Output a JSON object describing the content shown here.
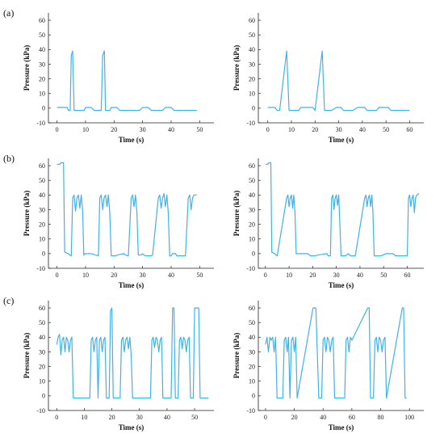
{
  "figure": {
    "panel_labels": [
      "(a)",
      "(b)",
      "(c)"
    ]
  },
  "chart_data": [
    {
      "type": "line",
      "panel": "a-left",
      "xlabel": "Time (s)",
      "ylabel": "Pressure (kPa)",
      "xlim": [
        -3,
        55
      ],
      "ylim": [
        -10,
        65
      ],
      "xticks": [
        0,
        10,
        20,
        30,
        40,
        50
      ],
      "yticks": [
        -10,
        0,
        10,
        20,
        30,
        40,
        50,
        60
      ],
      "grid": false,
      "color": "#3fb2ea",
      "series": [
        {
          "x": [
            0,
            3.6,
            4,
            4.6,
            5,
            5.5,
            6,
            6.2,
            6.6,
            9.5,
            10,
            12,
            13,
            15,
            15.5,
            16,
            16.6,
            17,
            17.4,
            17.8,
            18.5,
            19,
            21,
            22,
            25,
            29,
            30,
            32,
            33,
            37,
            38,
            40,
            41,
            44,
            45,
            49
          ],
          "y": [
            0.5,
            0.5,
            -1.5,
            -1.5,
            36,
            39,
            -1.5,
            -1.5,
            -1.5,
            -1.5,
            0.5,
            0.5,
            -1.5,
            -1.5,
            -1.5,
            36,
            39,
            -1.5,
            -1.5,
            -1.5,
            -1.5,
            0.5,
            0.5,
            -1.5,
            -1.5,
            -1.5,
            0.5,
            0.5,
            -1.5,
            -1.5,
            0.5,
            0.5,
            -1.5,
            -1.5,
            -1.5,
            -1.5
          ]
        }
      ]
    },
    {
      "type": "line",
      "panel": "a-right",
      "xlabel": "Time (s)",
      "ylabel": "Pressure (kPa)",
      "xlim": [
        -4,
        66
      ],
      "ylim": [
        -10,
        65
      ],
      "xticks": [
        0,
        10,
        20,
        30,
        40,
        50,
        60
      ],
      "yticks": [
        -10,
        0,
        10,
        20,
        30,
        40,
        50,
        60
      ],
      "grid": false,
      "color": "#3fb2ea",
      "series": [
        {
          "x": [
            0,
            3,
            4,
            5,
            8,
            9,
            13,
            14,
            19,
            20,
            23,
            24,
            27,
            29,
            31,
            32,
            36,
            38,
            41,
            42,
            46,
            47,
            51,
            52,
            55,
            60
          ],
          "y": [
            0.5,
            0.5,
            -1.5,
            -1.5,
            39,
            -1.5,
            -1.5,
            0.5,
            0.5,
            -1.5,
            39,
            -1.5,
            -1.5,
            0.5,
            0.5,
            -1.5,
            -1.5,
            0.5,
            0.5,
            -1.5,
            -1.5,
            0.5,
            0.5,
            -1.5,
            -1.5,
            -1.5
          ]
        }
      ]
    },
    {
      "type": "line",
      "panel": "b-left",
      "xlabel": "Time (s)",
      "ylabel": "Pressure (kPa)",
      "xlim": [
        -3,
        55
      ],
      "ylim": [
        -10,
        65
      ],
      "xticks": [
        0,
        10,
        20,
        30,
        40,
        50
      ],
      "yticks": [
        -10,
        0,
        10,
        20,
        30,
        40,
        50,
        60
      ],
      "grid": false,
      "color": "#3fb2ea",
      "series": [
        {
          "x": [
            0,
            1,
            1.5,
            2,
            2.3,
            2.7,
            4,
            4.5,
            5,
            5.5,
            6,
            6.5,
            7,
            7.5,
            8,
            8.5,
            9,
            9.4,
            9.8,
            10.5,
            11,
            12,
            14.5,
            15,
            15.5,
            16,
            16.5,
            17,
            17.5,
            18,
            18.5,
            19,
            19.5,
            20,
            20.5,
            21,
            23.5,
            24,
            25,
            26,
            26.5,
            27,
            27.5,
            28,
            28.5,
            29,
            29.5,
            30,
            30.5,
            31,
            32,
            32.5,
            33,
            33.5,
            35.5,
            36,
            36.5,
            37,
            37.5,
            38,
            38.5,
            39,
            39.5,
            40,
            40.5,
            41,
            41.5,
            42,
            44,
            44.5,
            45,
            46,
            46.5,
            47,
            47.5,
            48,
            48.5,
            49
          ],
          "y": [
            61,
            61,
            62,
            62,
            62,
            1,
            0,
            -1,
            -1.5,
            38,
            40,
            29,
            38,
            40,
            31,
            40,
            29,
            -1,
            0,
            0,
            0,
            0,
            -1.5,
            38,
            40,
            30,
            38,
            40,
            32,
            40,
            28,
            -1.5,
            -1.5,
            -1.5,
            -1.5,
            -1,
            0,
            -1,
            -1.5,
            38,
            40,
            32,
            40,
            28,
            -1,
            -1,
            -1,
            0,
            -1,
            -1.5,
            -1.5,
            -1.5,
            -1.5,
            -1,
            38,
            40,
            31,
            38,
            41,
            32,
            40,
            28,
            -1.5,
            -1.5,
            0,
            0,
            0,
            -1.5,
            -1.5,
            -1.5,
            -1.5,
            38,
            40,
            30,
            38,
            40,
            40,
            40
          ]
        }
      ]
    },
    {
      "type": "line",
      "panel": "b-right",
      "xlabel": "Time (s)",
      "ylabel": "Pressure (kPa)",
      "xlim": [
        -3,
        67
      ],
      "ylim": [
        -10,
        65
      ],
      "xticks": [
        0,
        10,
        20,
        30,
        40,
        50,
        60
      ],
      "yticks": [
        -10,
        0,
        10,
        20,
        30,
        40,
        50,
        60
      ],
      "grid": false,
      "color": "#3fb2ea",
      "series": [
        {
          "x": [
            0,
            1,
            1.5,
            2,
            2.3,
            2.7,
            4,
            4.5,
            5,
            9,
            9.5,
            10,
            10.5,
            11,
            11.5,
            12,
            12.5,
            13,
            13.5,
            14,
            16,
            18,
            19,
            21,
            22,
            26,
            26.5,
            27,
            27.5,
            28,
            28.5,
            29,
            29.5,
            30,
            30.5,
            31,
            32,
            34,
            35,
            36,
            37,
            38,
            42,
            42.5,
            43,
            43.5,
            44,
            44.5,
            45,
            45.5,
            46,
            46.5,
            47,
            49,
            51,
            52,
            54,
            55,
            59,
            59.5,
            60,
            60.5,
            61,
            61.5,
            62,
            62.5,
            63,
            63.5,
            64,
            65
          ],
          "y": [
            61,
            61,
            62,
            62,
            62,
            1,
            0,
            -1,
            -1.5,
            38,
            40,
            32,
            38,
            40,
            31,
            40,
            28,
            0,
            0,
            0,
            0,
            0,
            -1.5,
            -1.5,
            -1,
            0,
            -1.5,
            -1.5,
            -1.5,
            38,
            40,
            30,
            38,
            40,
            33,
            40,
            -1.5,
            -1.5,
            0,
            -1.5,
            -1.5,
            -1.5,
            38,
            40,
            32,
            38,
            40,
            32,
            40,
            28,
            -1.5,
            -1.5,
            -1.5,
            -1.5,
            0,
            0,
            0,
            -1.5,
            -1.5,
            -1.5,
            -1.5,
            38,
            40,
            32,
            38,
            40,
            28,
            38,
            40,
            41
          ]
        }
      ]
    },
    {
      "type": "line",
      "panel": "c-left",
      "xlabel": "Time (s)",
      "ylabel": "Pressure (kPa)",
      "xlim": [
        -3,
        57
      ],
      "ylim": [
        -10,
        65
      ],
      "xticks": [
        0,
        10,
        20,
        30,
        40,
        50
      ],
      "yticks": [
        -10,
        0,
        10,
        20,
        30,
        40,
        50,
        60
      ],
      "grid": false,
      "color": "#3fb2ea",
      "series": [
        {
          "x": [
            0,
            0.5,
            1,
            1.5,
            2,
            2.5,
            3,
            3.5,
            4,
            4.5,
            5,
            5.5,
            6,
            9,
            12,
            12.5,
            13,
            13.5,
            14,
            14.5,
            15,
            15.5,
            16,
            16.5,
            17,
            17.5,
            18,
            19,
            19.5,
            20,
            20.5,
            21,
            21.5,
            23,
            23.5,
            24,
            24.5,
            25,
            25.5,
            26,
            26.5,
            27,
            27.5,
            28,
            29,
            34,
            34.5,
            35,
            35.5,
            36,
            36.5,
            37,
            37.5,
            38,
            38.5,
            39,
            39.5,
            40,
            40.5,
            41,
            41.5,
            42,
            42.5,
            43,
            44,
            44.5,
            45,
            45.5,
            46,
            46.5,
            47,
            47.5,
            48,
            48.5,
            49,
            49.5,
            50,
            50.5,
            51,
            51.5,
            52,
            53,
            53.5,
            55
          ],
          "y": [
            35,
            40,
            42,
            28,
            38,
            40,
            30,
            40,
            38,
            30,
            38,
            40,
            -1.5,
            -1.5,
            -1.5,
            38,
            40,
            30,
            38,
            40,
            -1.5,
            38,
            40,
            30,
            38,
            40,
            -1.5,
            -1.5,
            58,
            60,
            -1.5,
            -1.5,
            -1.5,
            -1.5,
            38,
            40,
            30,
            38,
            40,
            32,
            40,
            28,
            -1.5,
            -1.5,
            -1.5,
            -1.5,
            38,
            40,
            33,
            40,
            38,
            30,
            38,
            40,
            -1.5,
            -1.5,
            -1.5,
            -1.5,
            -1.5,
            -1.5,
            -1.5,
            60,
            60,
            -1.5,
            -1.5,
            38,
            40,
            32,
            40,
            38,
            30,
            38,
            40,
            -1.5,
            -1.5,
            -1.5,
            60,
            60,
            60,
            60,
            -1.5,
            -1.5,
            -1.5,
            -1.5
          ]
        }
      ]
    },
    {
      "type": "line",
      "panel": "c-right",
      "xlabel": "Time (s)",
      "ylabel": "Pressure (kPa)",
      "xlim": [
        -5,
        110
      ],
      "ylim": [
        -10,
        65
      ],
      "xticks": [
        0,
        20,
        40,
        60,
        80,
        100
      ],
      "yticks": [
        -10,
        0,
        10,
        20,
        30,
        40,
        50,
        60
      ],
      "grid": false,
      "color": "#3fb2ea",
      "series": [
        {
          "x": [
            0,
            1,
            2,
            3,
            4,
            5,
            6,
            7,
            8,
            10,
            12,
            13,
            14,
            15,
            16,
            17,
            18,
            19,
            20,
            21,
            22,
            33,
            35,
            37,
            38,
            39,
            40,
            41,
            42,
            43,
            44,
            45,
            46,
            47,
            48,
            49,
            54,
            55,
            56,
            57,
            58,
            59,
            60,
            71,
            72,
            73,
            74,
            75,
            76,
            77,
            78,
            79,
            80,
            81,
            82,
            83,
            84,
            95,
            96,
            97,
            98
          ],
          "y": [
            35,
            40,
            30,
            40,
            38,
            40,
            30,
            40,
            -1.5,
            -1.5,
            -1.5,
            38,
            40,
            30,
            40,
            -1.5,
            38,
            40,
            30,
            40,
            -1.5,
            60,
            60,
            -1.5,
            -1.5,
            -1.5,
            38,
            40,
            30,
            40,
            38,
            30,
            38,
            40,
            -1.5,
            -1.5,
            -1.5,
            -1.5,
            38,
            40,
            30,
            40,
            38,
            60,
            60,
            -1.5,
            -1.5,
            -1.5,
            38,
            40,
            30,
            40,
            38,
            30,
            38,
            40,
            -1.5,
            60,
            60,
            -1.5,
            -1.5
          ]
        }
      ]
    }
  ]
}
